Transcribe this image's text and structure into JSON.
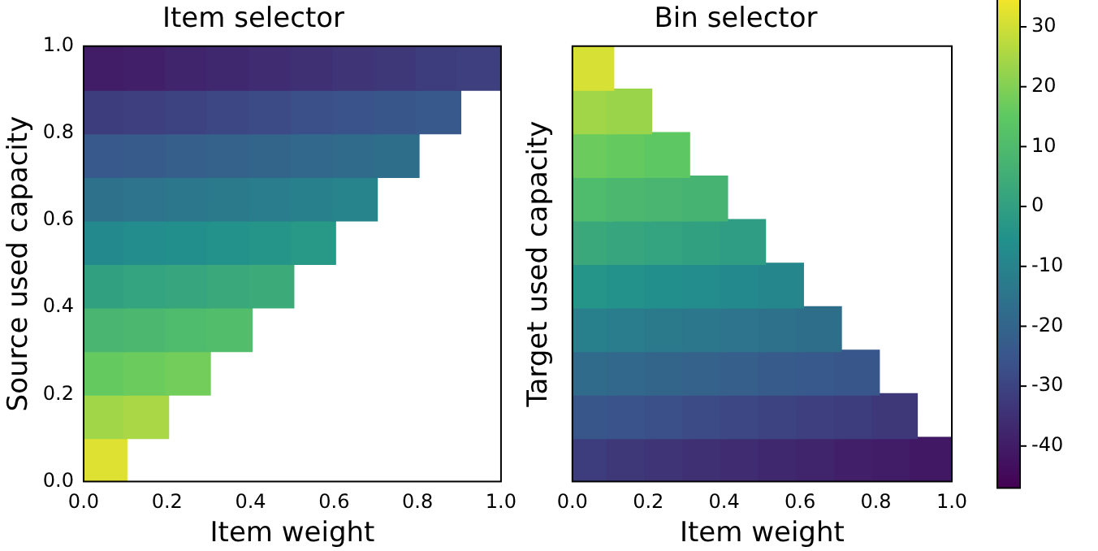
{
  "chart_data": [
    {
      "type": "scatter",
      "title": "Item selector",
      "xlabel": "Item weight",
      "ylabel": "Source used capacity",
      "marker": "square",
      "xlim": [
        0,
        1
      ],
      "xticks": [
        {
          "value": 0,
          "label": "0.0"
        },
        {
          "value": 0.2,
          "label": "0.2"
        },
        {
          "value": 0.4,
          "label": "0.4"
        },
        {
          "value": 0.6,
          "label": "0.6"
        },
        {
          "value": 0.8,
          "label": "0.8"
        },
        {
          "value": 1,
          "label": "1.0"
        }
      ],
      "ylim": [
        0,
        1
      ],
      "yticks": [
        {
          "value": 0,
          "label": "0.0"
        },
        {
          "value": 0.2,
          "label": "0.2"
        },
        {
          "value": 0.4,
          "label": "0.4"
        },
        {
          "value": 0.6,
          "label": "0.6"
        },
        {
          "value": 0.8,
          "label": "0.8"
        },
        {
          "value": 1,
          "label": "1.0"
        }
      ],
      "series": [
        {
          "x": [
            0.05,
            0.15,
            0.25,
            0.35,
            0.45,
            0.55,
            0.65,
            0.75,
            0.85,
            0.95
          ],
          "values": [
            0.95,
            0.95,
            0.95,
            0.95,
            0.95,
            0.95,
            0.95,
            0.95,
            0.95,
            0.95
          ],
          "colors": [
            "#411c67",
            "#412069",
            "#40246c",
            "#40286f",
            "#3f2c71",
            "#3f3074",
            "#3e3476",
            "#3e3879",
            "#3d3c7c",
            "#3d3f7e"
          ]
        },
        {
          "x": [
            0.05,
            0.15,
            0.25,
            0.35,
            0.45,
            0.55,
            0.65,
            0.75,
            0.85
          ],
          "values": [
            0.85,
            0.85,
            0.85,
            0.85,
            0.85,
            0.85,
            0.85,
            0.85,
            0.85
          ],
          "colors": [
            "#3d3c7c",
            "#3d3f7e",
            "#3d4381",
            "#3c4784",
            "#3c4b86",
            "#3b4f89",
            "#3b538b",
            "#39568b",
            "#38598b"
          ]
        },
        {
          "x": [
            0.05,
            0.15,
            0.25,
            0.35,
            0.45,
            0.55,
            0.65,
            0.75
          ],
          "values": [
            0.75,
            0.75,
            0.75,
            0.75,
            0.75,
            0.75,
            0.75,
            0.75
          ],
          "colors": [
            "#38598b",
            "#375c8b",
            "#365f8b",
            "#34628b",
            "#33658b",
            "#32688b",
            "#316b8b",
            "#2f6e8b"
          ]
        },
        {
          "x": [
            0.05,
            0.15,
            0.25,
            0.35,
            0.45,
            0.55,
            0.65
          ],
          "values": [
            0.65,
            0.65,
            0.65,
            0.65,
            0.65,
            0.65,
            0.65
          ],
          "colors": [
            "#2e718b",
            "#2d748c",
            "#2c778c",
            "#2a7a8c",
            "#297d8c",
            "#28808c",
            "#27838c"
          ]
        },
        {
          "x": [
            0.05,
            0.15,
            0.25,
            0.35,
            0.45,
            0.55
          ],
          "values": [
            0.55,
            0.55,
            0.55,
            0.55,
            0.55,
            0.55
          ],
          "colors": [
            "#24898c",
            "#238c8c",
            "#228f8c",
            "#22928b",
            "#259589",
            "#289887"
          ]
        },
        {
          "x": [
            0.05,
            0.15,
            0.25,
            0.35,
            0.45
          ],
          "values": [
            0.45,
            0.45,
            0.45,
            0.45,
            0.45
          ],
          "colors": [
            "#31a081",
            "#34a37f",
            "#37a57d",
            "#3aa87b",
            "#3dab79"
          ]
        },
        {
          "x": [
            0.05,
            0.15,
            0.25,
            0.35
          ],
          "values": [
            0.35,
            0.35,
            0.35,
            0.35
          ],
          "colors": [
            "#49b571",
            "#4cb86f",
            "#4fbb6d",
            "#52be6b"
          ]
        },
        {
          "x": [
            0.05,
            0.15,
            0.25
          ],
          "values": [
            0.25,
            0.25,
            0.25
          ],
          "colors": [
            "#64ca60",
            "#6bcc5d",
            "#73cd5a"
          ]
        },
        {
          "x": [
            0.05,
            0.15
          ],
          "values": [
            0.15,
            0.15
          ],
          "colors": [
            "#a1d648",
            "#a9d745"
          ]
        },
        {
          "x": [
            0.05
          ],
          "values": [
            0.05
          ],
          "colors": [
            "#dee131"
          ]
        }
      ]
    },
    {
      "type": "scatter",
      "title": "Bin selector",
      "xlabel": "Item weight",
      "ylabel": "Target used capacity",
      "marker": "square",
      "tick_labels": "x",
      "xlim": [
        0,
        1
      ],
      "xticks": [
        {
          "value": 0,
          "label": "0.0"
        },
        {
          "value": 0.2,
          "label": "0.2"
        },
        {
          "value": 0.4,
          "label": "0.4"
        },
        {
          "value": 0.6,
          "label": "0.6"
        },
        {
          "value": 0.8,
          "label": "0.8"
        },
        {
          "value": 1,
          "label": "1.0"
        }
      ],
      "ylim": [
        0,
        1
      ],
      "yticks": [
        {
          "value": 0,
          "label": null
        },
        {
          "value": 0.2,
          "label": null
        },
        {
          "value": 0.4,
          "label": null
        },
        {
          "value": 0.6,
          "label": null
        },
        {
          "value": 0.8,
          "label": null
        },
        {
          "value": 1,
          "label": null
        }
      ],
      "clim": [
        -47,
        36
      ],
      "cticks": [
        -40,
        -30,
        -20,
        -10,
        0,
        10,
        20,
        30
      ],
      "series": [
        {
          "x": [
            0.05
          ],
          "values": [
            0.95
          ],
          "cvalues": [
            31
          ],
          "colors": [
            "#d7e034"
          ]
        },
        {
          "x": [
            0.05,
            0.15
          ],
          "values": [
            0.85,
            0.85
          ],
          "cvalues": [
            24,
            23
          ],
          "colors": [
            "#a1d648",
            "#99d44b"
          ]
        },
        {
          "x": [
            0.05,
            0.15,
            0.25
          ],
          "values": [
            0.75,
            0.75,
            0.75
          ],
          "cvalues": [
            17,
            16,
            15
          ],
          "colors": [
            "#6bcc5d",
            "#64ca60",
            "#5dc863"
          ]
        },
        {
          "x": [
            0.05,
            0.15,
            0.25,
            0.35
          ],
          "values": [
            0.65,
            0.65,
            0.65,
            0.65
          ],
          "cvalues": [
            10,
            9,
            8,
            7
          ],
          "colors": [
            "#4fbb6d",
            "#4cb86f",
            "#49b571",
            "#46b373"
          ]
        },
        {
          "x": [
            0.05,
            0.15,
            0.25,
            0.35,
            0.45
          ],
          "values": [
            0.55,
            0.55,
            0.55,
            0.55,
            0.55
          ],
          "cvalues": [
            3,
            2,
            1,
            0,
            -1
          ],
          "colors": [
            "#3aa87b",
            "#37a57d",
            "#34a37f",
            "#31a081",
            "#2e9d83"
          ]
        },
        {
          "x": [
            0.05,
            0.15,
            0.25,
            0.35,
            0.45,
            0.55
          ],
          "values": [
            0.45,
            0.45,
            0.45,
            0.45,
            0.45,
            0.45
          ],
          "cvalues": [
            -4,
            -5,
            -6,
            -7,
            -8,
            -9
          ],
          "colors": [
            "#259589",
            "#22928b",
            "#228f8c",
            "#238c8c",
            "#24898c",
            "#25868c"
          ]
        },
        {
          "x": [
            0.05,
            0.15,
            0.25,
            0.35,
            0.45,
            0.55,
            0.65
          ],
          "values": [
            0.35,
            0.35,
            0.35,
            0.35,
            0.35,
            0.35,
            0.35
          ],
          "cvalues": [
            -11,
            -12,
            -13,
            -14,
            -15,
            -16,
            -17
          ],
          "colors": [
            "#28808c",
            "#297d8c",
            "#2a7a8c",
            "#2c778c",
            "#2d748c",
            "#2e718b",
            "#2f6e8b"
          ]
        },
        {
          "x": [
            0.05,
            0.15,
            0.25,
            0.35,
            0.45,
            0.55,
            0.65,
            0.75
          ],
          "values": [
            0.25,
            0.25,
            0.25,
            0.25,
            0.25,
            0.25,
            0.25,
            0.25
          ],
          "cvalues": [
            -18,
            -19,
            -20,
            -21,
            -22,
            -23,
            -24,
            -25
          ],
          "colors": [
            "#316b8b",
            "#32688b",
            "#33658b",
            "#34628b",
            "#365f8b",
            "#375c8b",
            "#38598b",
            "#39568b"
          ]
        },
        {
          "x": [
            0.05,
            0.15,
            0.25,
            0.35,
            0.45,
            0.55,
            0.65,
            0.75,
            0.85
          ],
          "values": [
            0.15,
            0.15,
            0.15,
            0.15,
            0.15,
            0.15,
            0.15,
            0.15,
            0.15
          ],
          "cvalues": [
            -25,
            -26,
            -27,
            -28,
            -29,
            -30,
            -31,
            -32,
            -33
          ],
          "colors": [
            "#39568b",
            "#3b538b",
            "#3b4f89",
            "#3c4b86",
            "#3c4784",
            "#3d4381",
            "#3d3f7e",
            "#3d3c7c",
            "#3e3879"
          ]
        },
        {
          "x": [
            0.05,
            0.15,
            0.25,
            0.35,
            0.45,
            0.55,
            0.65,
            0.75,
            0.85,
            0.95
          ],
          "values": [
            0.05,
            0.05,
            0.05,
            0.05,
            0.05,
            0.05,
            0.05,
            0.05,
            0.05,
            0.05
          ],
          "cvalues": [
            -32,
            -33,
            -34,
            -35,
            -36,
            -37,
            -38,
            -39,
            -40,
            -41
          ],
          "colors": [
            "#3d3c7c",
            "#3e3879",
            "#3e3476",
            "#3f3074",
            "#3f2c71",
            "#40286f",
            "#40246c",
            "#412069",
            "#411c67",
            "#411864"
          ]
        }
      ]
    }
  ]
}
